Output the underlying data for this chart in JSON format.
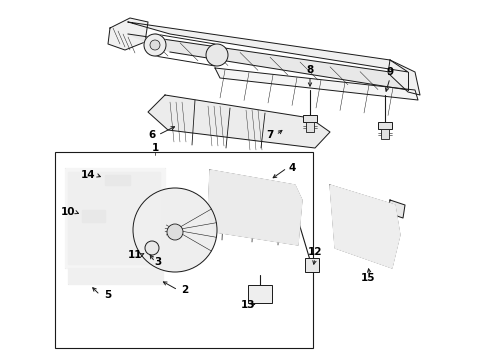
{
  "bg": "#ffffff",
  "lc": "#1a1a1a",
  "lw": 0.7,
  "fig_w": 4.9,
  "fig_h": 3.6,
  "dpi": 100
}
